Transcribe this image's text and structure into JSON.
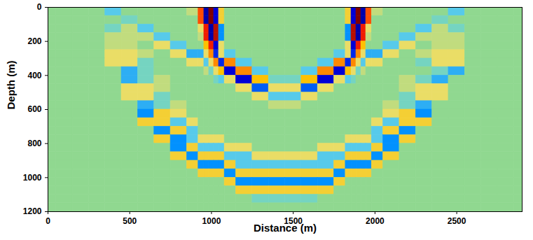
{
  "chart_data": {
    "type": "heatmap",
    "xlabel": "Distance (m)",
    "ylabel": "Depth (m)",
    "xlim": [
      0,
      2900
    ],
    "ylim": [
      0,
      1200
    ],
    "xticks": [
      0,
      500,
      1000,
      1500,
      2000,
      2500
    ],
    "yticks": [
      0,
      200,
      400,
      600,
      800,
      1000,
      1200
    ],
    "x": [
      0,
      100,
      200,
      300,
      400,
      500,
      600,
      700,
      800,
      900,
      940,
      970,
      1000,
      1030,
      1060,
      1100,
      1200,
      1300,
      1400,
      1500,
      1600,
      1700,
      1800,
      1840,
      1870,
      1900,
      1930,
      1960,
      2000,
      2100,
      2200,
      2300,
      2400,
      2500,
      2600,
      2700,
      2800,
      2900
    ],
    "y": [
      25,
      75,
      125,
      175,
      225,
      275,
      325,
      375,
      425,
      475,
      525,
      575,
      625,
      675,
      725,
      775,
      825,
      875,
      925,
      975,
      1025,
      1075,
      1125,
      1175
    ],
    "values": [
      [
        0,
        0,
        0,
        0,
        -2,
        0,
        0,
        0,
        0,
        1,
        6,
        -8,
        9,
        -7,
        3,
        0,
        0,
        0,
        0,
        0,
        0,
        0,
        0,
        3,
        -7,
        9,
        -8,
        6,
        1,
        0,
        0,
        0,
        0,
        -2,
        0,
        0,
        0,
        0
      ],
      [
        0,
        0,
        0,
        0,
        0,
        -1,
        0,
        0,
        0,
        0,
        6,
        -8,
        9,
        -7,
        3,
        0,
        0,
        0,
        0,
        0,
        0,
        0,
        0,
        3,
        -7,
        9,
        -8,
        6,
        0,
        0,
        0,
        0,
        -1,
        0,
        0,
        0,
        0,
        0
      ],
      [
        0,
        0,
        0,
        0,
        -1,
        1,
        -2,
        0,
        0,
        0,
        2,
        7,
        -8,
        8,
        -4,
        0,
        0,
        0,
        0,
        0,
        0,
        0,
        0,
        -4,
        8,
        -8,
        7,
        2,
        0,
        0,
        0,
        -2,
        1,
        -1,
        0,
        0,
        0,
        0
      ],
      [
        0,
        0,
        0,
        0,
        1,
        1,
        1,
        -2,
        0,
        0,
        1,
        7,
        -8,
        8,
        -4,
        0,
        0,
        0,
        0,
        0,
        0,
        0,
        0,
        -4,
        8,
        -8,
        7,
        1,
        0,
        0,
        -2,
        1,
        1,
        1,
        0,
        0,
        0,
        0
      ],
      [
        0,
        0,
        0,
        0,
        1,
        1,
        0,
        2,
        -2,
        0,
        0,
        4,
        7,
        -7,
        2,
        0,
        0,
        0,
        0,
        0,
        0,
        0,
        0,
        2,
        -7,
        7,
        4,
        0,
        0,
        -2,
        2,
        0,
        1,
        1,
        0,
        0,
        0,
        0
      ],
      [
        0,
        0,
        0,
        0,
        2,
        2,
        1,
        0,
        2,
        -3,
        -3,
        2,
        5,
        -6,
        2,
        -2,
        0,
        0,
        0,
        0,
        0,
        0,
        -2,
        2,
        -6,
        5,
        2,
        -3,
        -3,
        2,
        0,
        1,
        2,
        2,
        0,
        0,
        0,
        0
      ],
      [
        0,
        0,
        0,
        0,
        2,
        2,
        -1,
        0,
        0,
        2,
        2,
        -2,
        2,
        5,
        -6,
        5,
        -2,
        0,
        0,
        0,
        0,
        -2,
        5,
        -6,
        5,
        2,
        -2,
        2,
        2,
        0,
        0,
        -1,
        2,
        2,
        0,
        0,
        0,
        0
      ],
      [
        0,
        0,
        0,
        0,
        0,
        -3,
        -1,
        0,
        0,
        0,
        0,
        1,
        -1,
        2,
        4,
        -7,
        5,
        -2,
        0,
        0,
        -2,
        5,
        -7,
        4,
        2,
        -1,
        1,
        0,
        0,
        0,
        0,
        0,
        -1,
        -3,
        0,
        0,
        0,
        0
      ],
      [
        0,
        0,
        0,
        0,
        0,
        -3,
        -1,
        1,
        0,
        0,
        0,
        0,
        0,
        -1,
        -2,
        2,
        -7,
        4,
        -1,
        -1,
        4,
        -7,
        2,
        -2,
        -1,
        0,
        0,
        0,
        0,
        0,
        1,
        -1,
        -3,
        0,
        0,
        0,
        0,
        0
      ],
      [
        0,
        0,
        0,
        0,
        0,
        2,
        2,
        1,
        0,
        0,
        0,
        0,
        0,
        0,
        0,
        0,
        2,
        -5,
        2,
        2,
        -5,
        2,
        0,
        0,
        0,
        0,
        0,
        0,
        0,
        0,
        1,
        2,
        2,
        0,
        0,
        0,
        0,
        0
      ],
      [
        0,
        0,
        0,
        0,
        0,
        2,
        2,
        -1,
        0,
        0,
        0,
        0,
        0,
        0,
        0,
        0,
        0,
        2,
        -2,
        -2,
        2,
        0,
        0,
        0,
        0,
        0,
        0,
        0,
        0,
        0,
        -1,
        2,
        2,
        0,
        0,
        0,
        0,
        0
      ],
      [
        0,
        0,
        0,
        0,
        0,
        0,
        -3,
        -1,
        1,
        0,
        0,
        0,
        0,
        0,
        0,
        0,
        0,
        0,
        1,
        1,
        0,
        0,
        0,
        0,
        0,
        0,
        0,
        0,
        0,
        1,
        -1,
        -3,
        0,
        0,
        0,
        0,
        0,
        0
      ],
      [
        0,
        0,
        0,
        0,
        0,
        0,
        -4,
        3,
        2,
        0,
        0,
        0,
        0,
        0,
        0,
        0,
        0,
        0,
        0,
        0,
        0,
        0,
        0,
        0,
        0,
        0,
        0,
        0,
        0,
        2,
        3,
        -4,
        0,
        0,
        0,
        0,
        0,
        0
      ],
      [
        0,
        0,
        0,
        0,
        0,
        0,
        3,
        3,
        -2,
        2,
        0,
        0,
        0,
        0,
        0,
        0,
        0,
        0,
        0,
        0,
        0,
        0,
        0,
        0,
        0,
        0,
        0,
        0,
        2,
        -2,
        3,
        3,
        0,
        0,
        0,
        0,
        0,
        0
      ],
      [
        0,
        0,
        0,
        0,
        0,
        0,
        0,
        -4,
        3,
        -2,
        0,
        0,
        0,
        0,
        0,
        0,
        0,
        0,
        0,
        0,
        0,
        0,
        0,
        0,
        0,
        0,
        0,
        0,
        -2,
        3,
        -4,
        0,
        0,
        0,
        0,
        0,
        0,
        0
      ],
      [
        0,
        0,
        0,
        0,
        0,
        0,
        0,
        3,
        -4,
        -2,
        2,
        2,
        2,
        2,
        2,
        0,
        0,
        0,
        0,
        0,
        0,
        0,
        0,
        2,
        2,
        2,
        2,
        2,
        -2,
        -4,
        3,
        0,
        0,
        0,
        0,
        0,
        0,
        0
      ],
      [
        0,
        0,
        0,
        0,
        0,
        0,
        0,
        0,
        -4,
        3,
        -2,
        -2,
        -2,
        -2,
        -2,
        2,
        2,
        0,
        0,
        0,
        0,
        2,
        2,
        -2,
        -2,
        -2,
        -2,
        -2,
        3,
        -4,
        0,
        0,
        0,
        0,
        0,
        0,
        0,
        0
      ],
      [
        0,
        0,
        0,
        0,
        0,
        0,
        0,
        0,
        3,
        -4,
        3,
        3,
        3,
        3,
        3,
        -2,
        -2,
        2,
        2,
        2,
        2,
        -2,
        -2,
        3,
        3,
        3,
        3,
        3,
        -4,
        3,
        0,
        0,
        0,
        0,
        0,
        0,
        0,
        0
      ],
      [
        0,
        0,
        0,
        0,
        0,
        0,
        0,
        0,
        0,
        3,
        -4,
        -4,
        -4,
        -4,
        -4,
        3,
        -2,
        -2,
        -2,
        -2,
        -2,
        -2,
        3,
        -4,
        -4,
        -4,
        -4,
        -4,
        3,
        0,
        0,
        0,
        0,
        0,
        0,
        0,
        0,
        0
      ],
      [
        0,
        0,
        0,
        0,
        0,
        0,
        0,
        0,
        0,
        0,
        3,
        3,
        3,
        3,
        3,
        -4,
        3,
        3,
        3,
        3,
        3,
        3,
        -4,
        3,
        3,
        3,
        3,
        3,
        0,
        0,
        0,
        0,
        0,
        0,
        0,
        0,
        0,
        0
      ],
      [
        0,
        0,
        0,
        0,
        0,
        0,
        0,
        0,
        0,
        0,
        0,
        0,
        0,
        0,
        0,
        3,
        -4,
        -4,
        -4,
        -4,
        -4,
        -4,
        3,
        0,
        0,
        0,
        0,
        0,
        0,
        0,
        0,
        0,
        0,
        0,
        0,
        0,
        0,
        0
      ],
      [
        0,
        0,
        0,
        0,
        0,
        0,
        0,
        0,
        0,
        0,
        0,
        0,
        0,
        0,
        0,
        0,
        3,
        3,
        3,
        3,
        3,
        3,
        0,
        0,
        0,
        0,
        0,
        0,
        0,
        0,
        0,
        0,
        0,
        0,
        0,
        0,
        0,
        0
      ],
      [
        0,
        0,
        0,
        0,
        0,
        0,
        0,
        0,
        0,
        0,
        0,
        0,
        0,
        0,
        0,
        0,
        0,
        -1,
        -1,
        -1,
        -1,
        0,
        0,
        0,
        0,
        0,
        0,
        0,
        0,
        0,
        0,
        0,
        0,
        0,
        0,
        0,
        0,
        0
      ],
      [
        0,
        0,
        0,
        0,
        0,
        0,
        0,
        0,
        0,
        0,
        0,
        0,
        0,
        0,
        0,
        0,
        0,
        0,
        0,
        0,
        0,
        0,
        0,
        0,
        0,
        0,
        0,
        0,
        0,
        0,
        0,
        0,
        0,
        0,
        0,
        0,
        0,
        0
      ]
    ]
  }
}
